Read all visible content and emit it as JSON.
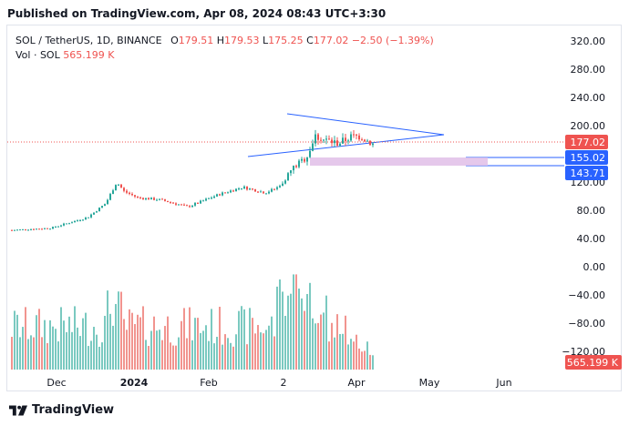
{
  "header": {
    "published": "Published on TradingView.com, Apr 08, 2024 08:43 UTC+3:30"
  },
  "legend": {
    "symbol": "SOL / TetherUS, 1D, BINANCE",
    "open_label": "O",
    "open": "179.51",
    "high_label": "H",
    "high": "179.53",
    "low_label": "L",
    "low": "175.25",
    "close_label": "C",
    "close": "177.02",
    "change": "−2.50 (−1.39%)",
    "volume_label": "Vol · SOL",
    "volume": "565.199 K"
  },
  "price_axis": {
    "ticks": [
      "320.00",
      "280.00",
      "240.00",
      "200.00",
      "160.00",
      "120.00",
      "80.00",
      "40.00",
      "0.00",
      "−40.00",
      "−80.00",
      "−120.00"
    ],
    "badges": [
      {
        "label": "177.02",
        "color": "#ef5350"
      },
      {
        "label": "155.02",
        "color": "#2962ff"
      },
      {
        "label": "143.71",
        "color": "#2962ff"
      }
    ],
    "volume_badge": {
      "label": "565.199 K",
      "color": "#ef5350"
    }
  },
  "time_axis": {
    "ticks": [
      "Dec",
      "2024",
      "Feb",
      "2",
      "Apr",
      "May",
      "Jun"
    ]
  },
  "footer": {
    "brand": "TradingView",
    "logo_icon": "tradingview-logo-icon"
  },
  "colors": {
    "up": "#26a69a",
    "down": "#ef5350",
    "trendline": "#2962ff",
    "zone": "#e1bee7",
    "volume_up": "#7ac9c0",
    "volume_down": "#f1948f"
  }
}
